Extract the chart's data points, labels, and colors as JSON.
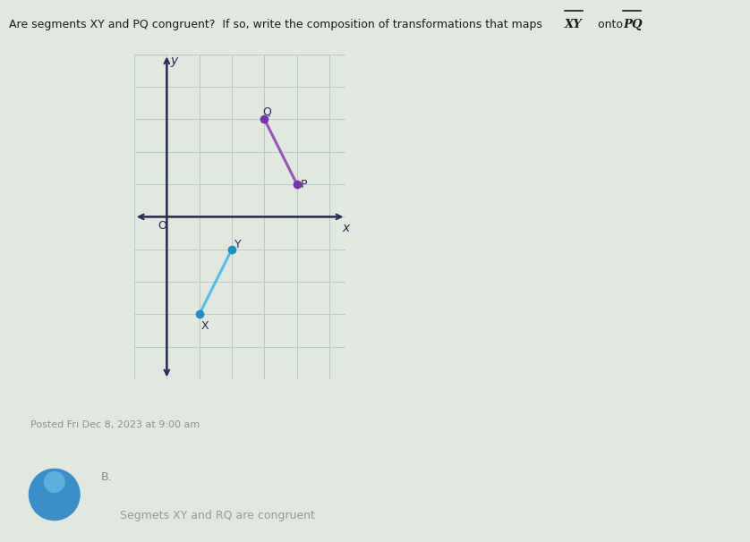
{
  "title_part1": "Are segments XY and PQ congruent?  If so, write the composition of transformations that maps ",
  "title_xy": "XY",
  "title_onto": " onto ",
  "title_pq": "PQ",
  "background_color": "#e0e8e0",
  "grid_color": "#b8ccc8",
  "axis_color": "#2a2a5a",
  "segment_XY": {
    "X": [
      1,
      -3
    ],
    "Y": [
      2,
      -1
    ],
    "color": "#50c0e8",
    "dot_color": "#1890c8"
  },
  "segment_PQ": {
    "P": [
      4,
      1
    ],
    "Q": [
      3,
      3
    ],
    "color": "#9955bb",
    "dot_color": "#7733aa"
  },
  "origin_label": "O",
  "x_label": "x",
  "y_label": "y",
  "xlim": [
    -1.0,
    5.5
  ],
  "ylim": [
    -5.0,
    5.0
  ],
  "footer_text": "Posted Fri Dec 8, 2023 at 9:00 am",
  "answer_label": "B.",
  "answer_text": "Segmets XY and RQ are congruent",
  "plot_bg": "#cfdfd8",
  "outer_bg": "#dce8dc"
}
